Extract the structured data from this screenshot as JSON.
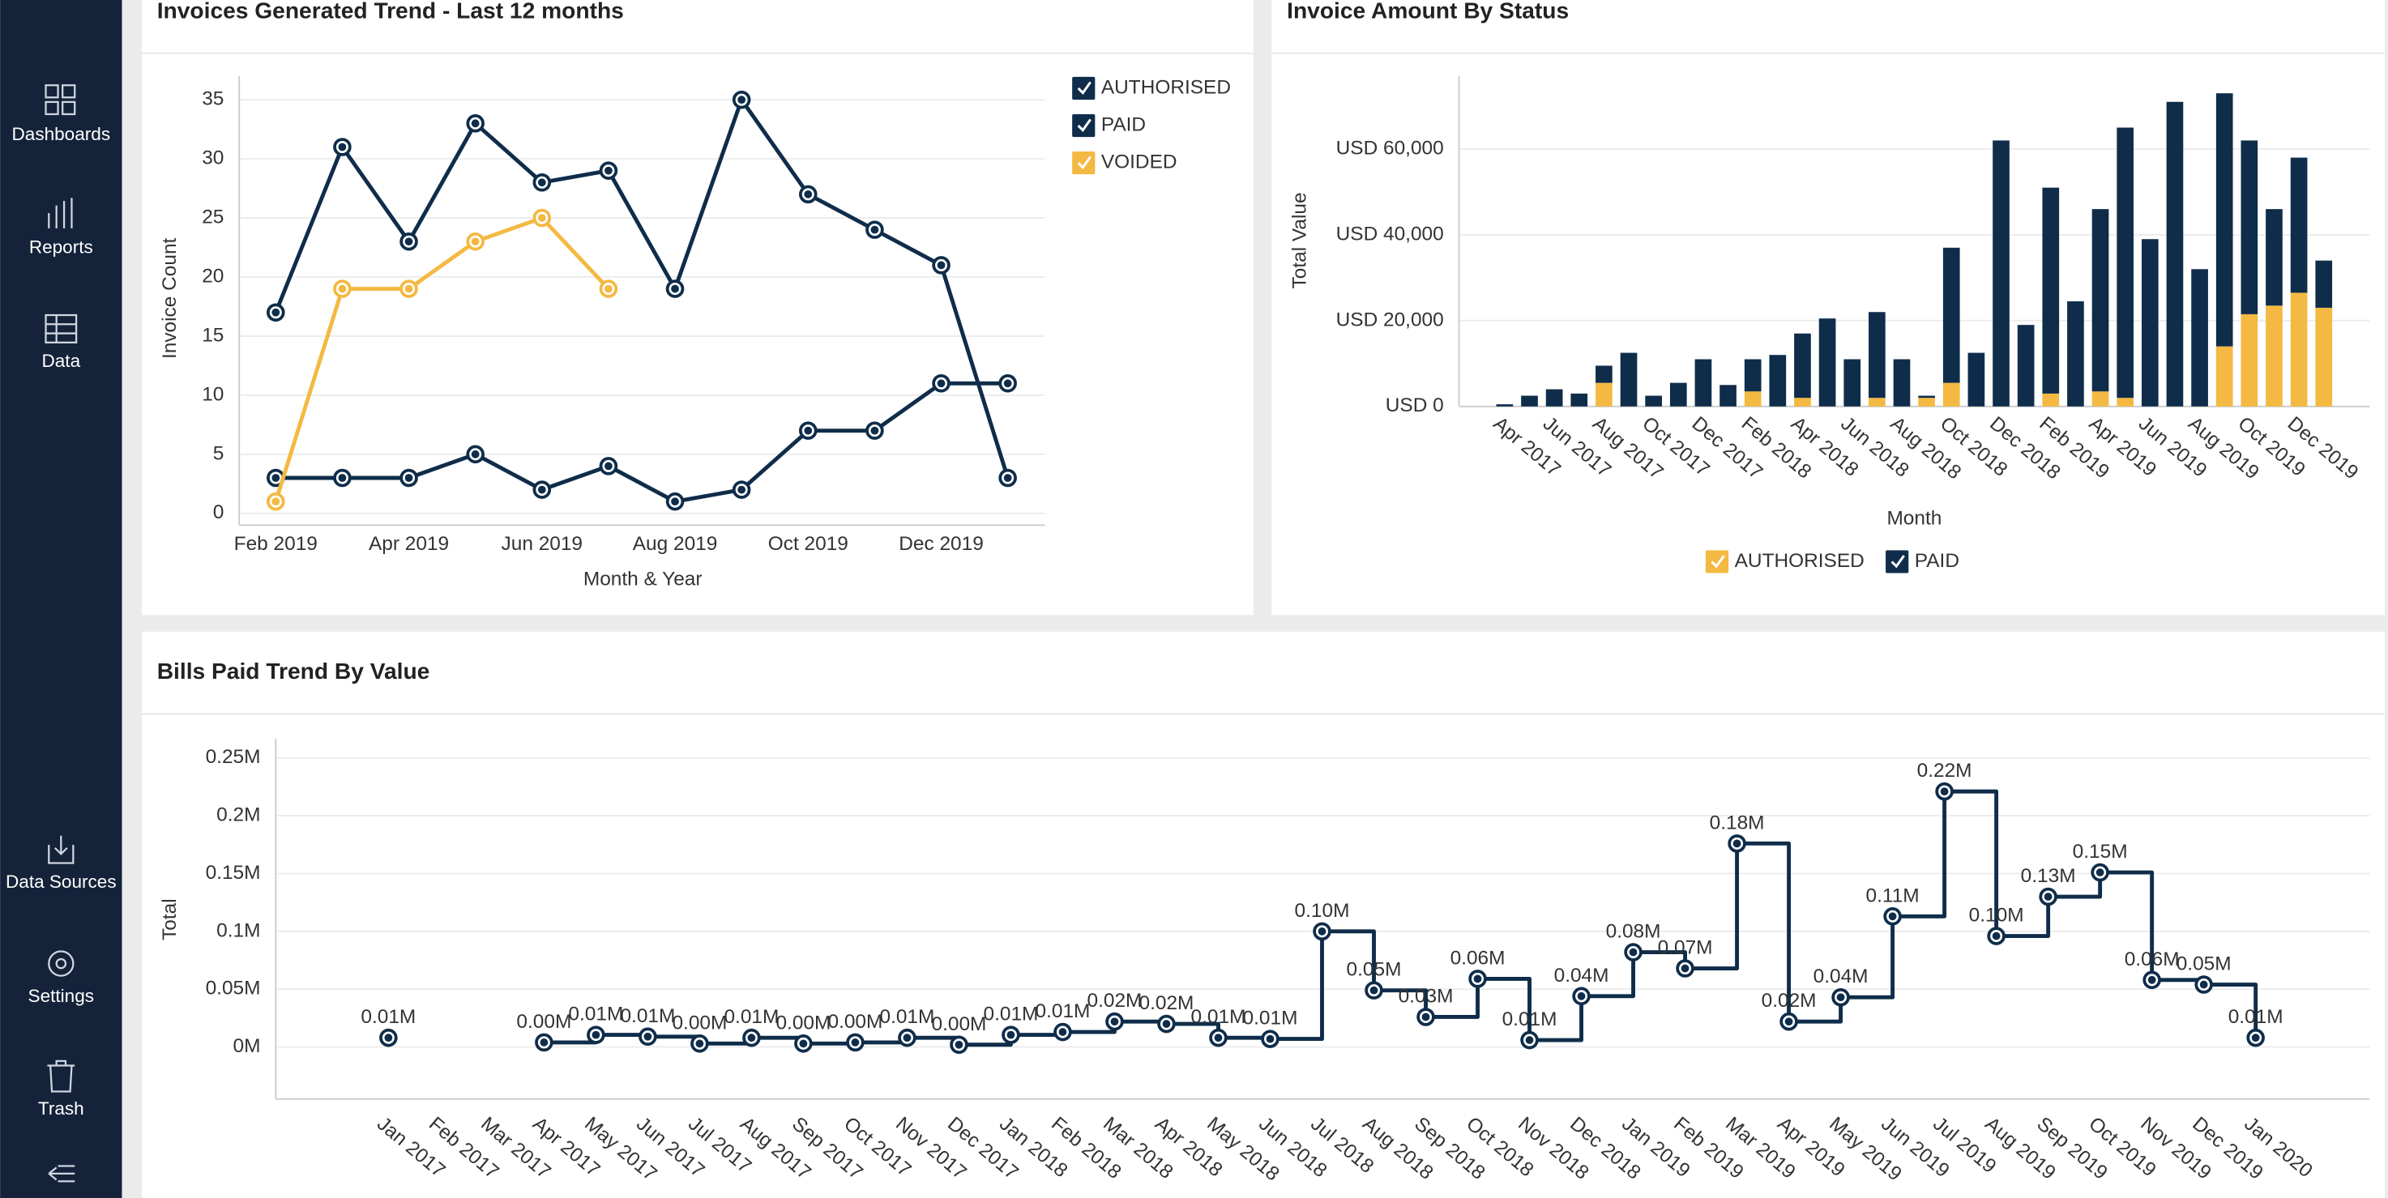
{
  "sidebar": {
    "items": [
      "Dashboards",
      "Reports",
      "Data",
      "Data Sources",
      "Settings",
      "Trash"
    ]
  },
  "chart_data": [
    {
      "type": "line",
      "title": "Invoices Generated Trend - Last 12 months",
      "x_label": "Month & Year",
      "y_label": "Invoice Count",
      "categories": [
        "Feb 2019",
        null,
        "Apr 2019",
        null,
        "Jun 2019",
        null,
        "Aug 2019",
        null,
        "Oct 2019",
        null,
        "Dec 2019",
        null
      ],
      "series": [
        {
          "name": "AUTHORISED",
          "color": "#0f2d4a",
          "values": [
            3,
            3,
            3,
            5,
            2,
            4,
            1,
            2,
            7,
            7,
            11,
            11
          ]
        },
        {
          "name": "PAID",
          "color": "#0f2d4a",
          "values": [
            17,
            31,
            23,
            33,
            28,
            29,
            19,
            35,
            27,
            24,
            21,
            3
          ]
        },
        {
          "name": "VOIDED",
          "color": "#f4b942",
          "values": [
            1,
            19,
            19,
            23,
            25,
            19,
            null,
            null,
            null,
            null,
            null,
            null
          ]
        }
      ],
      "ylim": [
        -1,
        37
      ],
      "yticks": [
        0,
        5,
        10,
        15,
        20,
        25,
        30,
        35
      ],
      "grid": true,
      "legend": "top-right"
    },
    {
      "type": "bar",
      "stacked": true,
      "title": "Invoice Amount By Status",
      "x_label": "Month",
      "y_label": "Total Value",
      "categories": [
        "Apr 2017",
        null,
        "Jun 2017",
        null,
        "Aug 2017",
        null,
        "Oct 2017",
        null,
        "Dec 2017",
        null,
        "Feb 2018",
        null,
        "Apr 2018",
        null,
        "Jun 2018",
        null,
        "Aug 2018",
        null,
        "Oct 2018",
        null,
        "Dec 2018",
        null,
        "Feb 2019",
        null,
        "Apr 2019",
        null,
        "Jun 2019",
        null,
        "Aug 2019",
        null,
        "Oct 2019",
        null,
        "Dec 2019",
        null
      ],
      "series": [
        {
          "name": "AUTHORISED",
          "color": "#f4b942",
          "values": [
            0,
            0,
            0,
            0,
            5500,
            0,
            0,
            0,
            0,
            0,
            3500,
            0,
            2000,
            0,
            0,
            2000,
            0,
            2000,
            5500,
            0,
            0,
            0,
            3000,
            0,
            3500,
            2000,
            0,
            0,
            0,
            14000,
            21500,
            23500,
            26500,
            23000
          ]
        },
        {
          "name": "PAID",
          "color": "#0f2d4a",
          "values": [
            500,
            2500,
            4000,
            3000,
            4000,
            12500,
            2500,
            5500,
            11000,
            5000,
            7500,
            12000,
            15000,
            20500,
            11000,
            20000,
            11000,
            500,
            31500,
            12500,
            62000,
            19000,
            48000,
            24500,
            42500,
            63000,
            39000,
            71000,
            32000,
            59000,
            40500,
            22500,
            31500,
            11000
          ]
        }
      ],
      "ylim": [
        0,
        77000
      ],
      "yticks": [
        {
          "value": 0,
          "label": "USD 0"
        },
        {
          "value": 20000,
          "label": "USD 20,000"
        },
        {
          "value": 40000,
          "label": "USD 40,000"
        },
        {
          "value": 60000,
          "label": "USD 60,000"
        }
      ],
      "grid": true,
      "legend": "bottom"
    },
    {
      "type": "line",
      "step": true,
      "title": "Bills Paid Trend By Value",
      "y_label": "Total",
      "color": "#0f2d4a",
      "categories": [
        "Jan 2017",
        "Feb 2017",
        "Mar 2017",
        "Apr 2017",
        "May 2017",
        "Jun 2017",
        "Jul 2017",
        "Aug 2017",
        "Sep 2017",
        "Oct 2017",
        "Nov 2017",
        "Dec 2017",
        "Jan 2018",
        "Feb 2018",
        "Mar 2018",
        "Apr 2018",
        "May 2018",
        "Jun 2018",
        "Jul 2018",
        "Aug 2018",
        "Sep 2018",
        "Oct 2018",
        "Nov 2018",
        "Dec 2018",
        "Jan 2019",
        "Feb 2019",
        "Mar 2019",
        "Apr 2019",
        "May 2019",
        "Jun 2019",
        "Jul 2019",
        "Aug 2019",
        "Sep 2019",
        "Oct 2019",
        "Nov 2019",
        "Dec 2019",
        "Jan 2020"
      ],
      "values": [
        0.008,
        null,
        null,
        0.004,
        0.0105,
        0.009,
        0.003,
        0.008,
        0.003,
        0.004,
        0.008,
        0.002,
        0.0105,
        0.013,
        0.022,
        0.02,
        0.008,
        0.007,
        0.1,
        0.049,
        0.026,
        0.059,
        0.006,
        0.044,
        0.082,
        0.068,
        0.176,
        0.022,
        0.043,
        0.113,
        0.221,
        0.096,
        0.13,
        0.151,
        0.058,
        0.054,
        0.008
      ],
      "value_labels": [
        "0.01M",
        null,
        null,
        "0.00M",
        "0.01M",
        "0.01M",
        "0.00M",
        "0.01M",
        "0.00M",
        "0.00M",
        "0.01M",
        "0.00M",
        "0.01M",
        "0.01M",
        "0.02M",
        "0.02M",
        "0.01M",
        "0.01M",
        "0.10M",
        "0.05M",
        "0.03M",
        "0.06M",
        "0.01M",
        "0.04M",
        "0.08M",
        "0.07M",
        "0.18M",
        "0.02M",
        "0.04M",
        "0.11M",
        "0.22M",
        "0.10M",
        "0.13M",
        "0.15M",
        "0.06M",
        "0.05M",
        "0.01M"
      ],
      "ylim": [
        -0.045,
        0.267
      ],
      "yticks": [
        {
          "value": 0,
          "label": "0M"
        },
        {
          "value": 0.05,
          "label": "0.05M"
        },
        {
          "value": 0.1,
          "label": "0.1M"
        },
        {
          "value": 0.15,
          "label": "0.15M"
        },
        {
          "value": 0.2,
          "label": "0.2M"
        },
        {
          "value": 0.25,
          "label": "0.25M"
        }
      ],
      "grid": true
    }
  ]
}
